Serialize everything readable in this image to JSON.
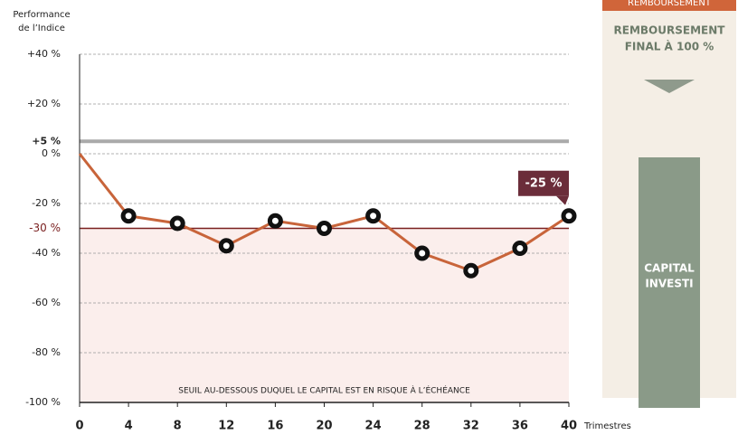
{
  "chart_data": {
    "type": "line",
    "y_label": [
      "Performance",
      "de l’Indice"
    ],
    "x_label": "Trimestres",
    "x": [
      0,
      4,
      8,
      12,
      16,
      20,
      24,
      28,
      32,
      36,
      40
    ],
    "values": [
      0,
      -25,
      -28,
      -37,
      -27,
      -30,
      -25,
      -40,
      -47,
      -38,
      -25
    ],
    "value_labels": [
      null,
      null,
      null,
      null,
      null,
      null,
      null,
      null,
      null,
      null,
      "-25 %"
    ],
    "color": "#c8643a",
    "xlim": [
      0,
      40
    ],
    "xticks": [
      0,
      4,
      8,
      12,
      16,
      20,
      24,
      28,
      32,
      36,
      40
    ],
    "ylim": [
      -100,
      40
    ],
    "yticks": [
      {
        "value": 40,
        "label": "+40 %"
      },
      {
        "value": 20,
        "label": "+20 %"
      },
      {
        "value": 0,
        "label": "0 %"
      },
      {
        "value": -20,
        "label": "-20 %"
      },
      {
        "value": -40,
        "label": "-40 %"
      },
      {
        "value": -60,
        "label": "-60 %"
      },
      {
        "value": -80,
        "label": "-80 %"
      },
      {
        "value": -100,
        "label": "-100 %"
      }
    ],
    "grid": true,
    "levels": [
      {
        "value": 5,
        "label": "+5 %",
        "color": "#aaaaaa"
      },
      {
        "value": -30,
        "label": "-30 %",
        "color": "#7a1f1f"
      }
    ],
    "zone_label": "SEUIL AU-DESSOUS DUQUEL LE CAPITAL EST EN RISQUE À L’ÉCHÉANCE"
  },
  "panel": {
    "header": "REMBOURSEMENT",
    "title": [
      "REMBOURSEMENT",
      "FINAL À 100 %"
    ],
    "bar_label": [
      "CAPITAL",
      "INVESTI"
    ]
  }
}
